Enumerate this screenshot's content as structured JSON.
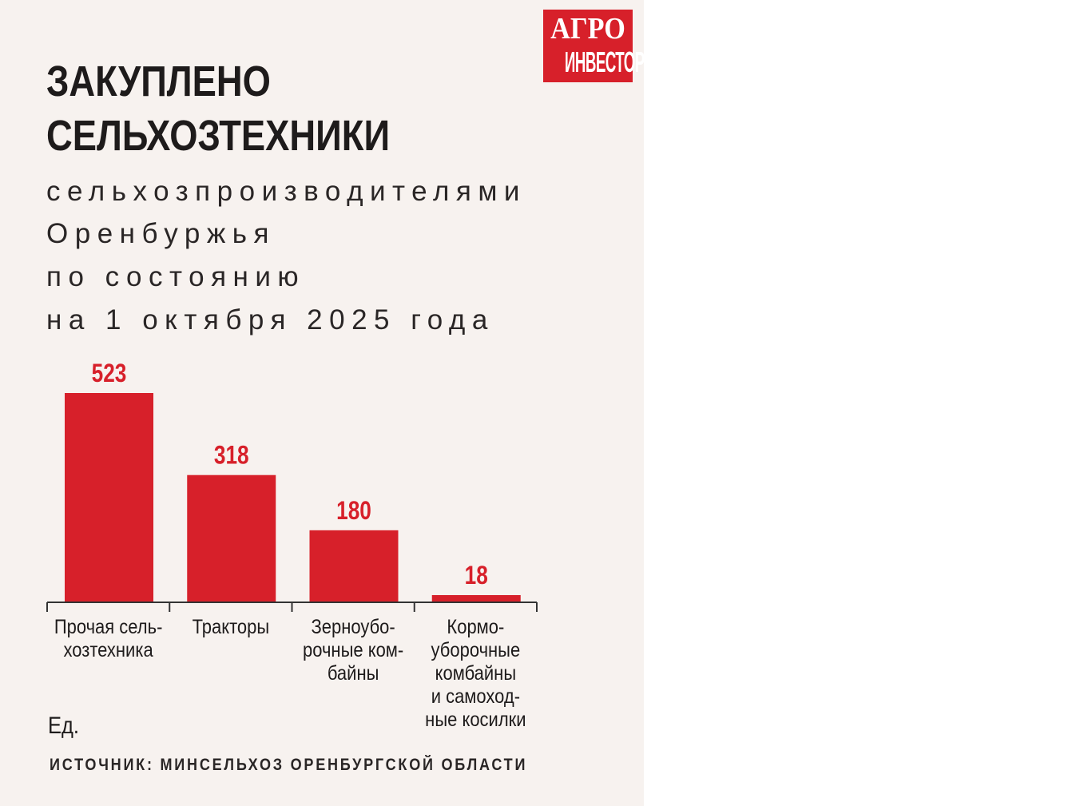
{
  "logo": {
    "line1": "АГРО",
    "line2": "ИНВЕСТОР"
  },
  "title": [
    "ЗАКУПЛЕНО",
    "СЕЛЬХОЗТЕХНИКИ"
  ],
  "subtitle": [
    "сельхозпроизводителями",
    "Оренбуржья",
    "по состоянию",
    "на 1 октября 2025 года"
  ],
  "unit": "Ед.",
  "source": "ИСТОЧНИК: МИНСЕЛЬХОЗ ОРЕНБУРГСКОЙ ОБЛАСТИ",
  "colors": {
    "bar": "#d7202a",
    "value_label": "#d7202a",
    "background": "#f7f2ef",
    "axis": "#333333"
  },
  "chart_data": {
    "type": "bar",
    "categories": [
      [
        "Прочая сель-",
        "хозтехника"
      ],
      [
        "Тракторы"
      ],
      [
        "Зерноубо-",
        "рочные ком-",
        "байны"
      ],
      [
        "Кормо-",
        "уборочные",
        "комбайны",
        "и самоход-",
        "ные косилки"
      ]
    ],
    "values": [
      523,
      318,
      180,
      18
    ],
    "data_labels": [
      "523",
      "318",
      "180",
      "18"
    ],
    "ylabel": "Ед.",
    "grid": false,
    "yaxis_visible": false
  }
}
